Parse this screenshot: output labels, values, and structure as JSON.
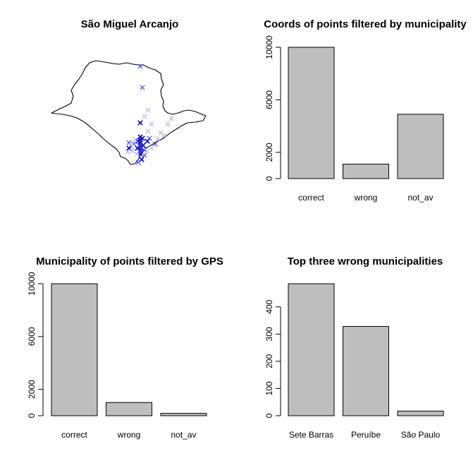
{
  "chart_data": [
    {
      "type": "scatter",
      "title": "São Miguel Arcanjo",
      "map_region": "São Paulo state outline",
      "colors": {
        "outline": "#000000",
        "points_dark": "#0000cc",
        "points_mid": "#4a4aff",
        "points_light": "#b4b4ff"
      },
      "marker": "x"
    },
    {
      "type": "bar",
      "title": "Coords of points filtered by municipality",
      "categories": [
        "correct",
        "wrong",
        "not_av"
      ],
      "values": [
        10000,
        1100,
        4900
      ],
      "ylim": [
        0,
        10000
      ],
      "yticks": [
        0,
        2000,
        6000,
        10000
      ],
      "xlabel": "",
      "ylabel": ""
    },
    {
      "type": "bar",
      "title": "Municipality of points filtered by GPS",
      "categories": [
        "correct",
        "wrong",
        "not_av"
      ],
      "values": [
        10000,
        1000,
        180
      ],
      "ylim": [
        0,
        10000
      ],
      "yticks": [
        0,
        2000,
        6000,
        10000
      ],
      "xlabel": "",
      "ylabel": ""
    },
    {
      "type": "bar",
      "title": "Top three wrong municipalities",
      "categories": [
        "Sete Barras",
        "Peruíbe",
        "São Paulo"
      ],
      "values": [
        485,
        328,
        17
      ],
      "ylim": [
        0,
        485
      ],
      "yticks": [
        0,
        100,
        200,
        300,
        400
      ],
      "xlabel": "",
      "ylabel": ""
    }
  ],
  "colors": {
    "bar_fill": "#bebebe",
    "bar_stroke": "#000000",
    "background": "#ffffff"
  }
}
